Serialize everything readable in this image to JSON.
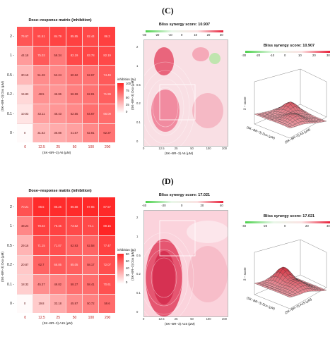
{
  "panels": [
    {
      "id": "C",
      "label": "(C)",
      "matrix_title": "Dose−response matrix (inhibition)",
      "row_labels": [
        "2",
        "1",
        "0.5",
        "0.2",
        "0.1",
        "0"
      ],
      "col_labels": [
        "0",
        "12.5",
        "25",
        "50",
        "100",
        "200"
      ],
      "y_title": "(SK−BR−3) Dox (μM)",
      "x_title": "(SK−BR−3) A6 (μM)",
      "legend_title": "inhibition (%)",
      "legend_ticks": [
        "100",
        "75",
        "50",
        "25",
        "0"
      ],
      "values": [
        [
          "76.67",
          "81.51",
          "84.79",
          "85.85",
          "82.44",
          "86.3"
        ],
        [
          "44.18",
          "75.03",
          "59.34",
          "82.19",
          "83.78",
          "82.19"
        ],
        [
          "30.18",
          "51.28",
          "52.24",
          "60.62",
          "62.67",
          "74.49"
        ],
        [
          "15.83",
          "48.5",
          "46.86",
          "56.59",
          "62.81",
          "71.99"
        ],
        [
          "10.03",
          "42.11",
          "46.43",
          "52.55",
          "64.67",
          "66.09"
        ],
        [
          "0",
          "31.62",
          "36.88",
          "41.67",
          "52.81",
          "62.37"
        ]
      ],
      "synergy_title": "Bliss synergy score: 10.907",
      "synergy_bar_ticks": [
        "-30",
        "-20",
        "-10",
        "0",
        "10",
        "20",
        "30"
      ],
      "contour_x_ticks": [
        "0",
        "12.5",
        "25",
        "50",
        "100",
        "200"
      ],
      "contour_y_ticks": [
        "2",
        "1",
        "0.5",
        "0.2",
        "0.1",
        "0"
      ],
      "contour_x_title": "(SK−BR−3) A6 (μM)",
      "contour_y_title": "(SK−BR−3) Dox (μM)",
      "surface_title": "Bliss synergy score: 10.907",
      "surface_bar_ticks": [
        "-30",
        "-20",
        "-10",
        "0",
        "10",
        "20",
        "30"
      ],
      "surface_z_label": "δ − score",
      "surface_x_title": "(SK−BR−3) A6 (μM)",
      "surface_y_title": "(SK−BR−3) Dox (μM)"
    },
    {
      "id": "D",
      "label": "(D)",
      "matrix_title": "Dose−response matrix (inhibition)",
      "row_labels": [
        "2",
        "1",
        "0.5",
        "0.2",
        "0.1",
        "0"
      ],
      "col_labels": [
        "0",
        "12.5",
        "25",
        "50",
        "100",
        "200"
      ],
      "y_title": "(SK−BR−3) Dox (μM)",
      "x_title": "(SK−BR−3) A15 (μM)",
      "legend_title": "inhibition (%)",
      "legend_ticks": [
        "80",
        "60",
        "40",
        "20",
        "0"
      ],
      "values": [
        [
          "70.21",
          "86.5",
          "86.25",
          "86.58",
          "87.85",
          "87.57"
        ],
        [
          "48.24",
          "78.02",
          "76.45",
          "73.52",
          "74.1",
          "89.15"
        ],
        [
          "29.16",
          "71.15",
          "71.07",
          "62.93",
          "62.58",
          "77.47"
        ],
        [
          "20.87",
          "62.7",
          "66.85",
          "65.05",
          "58.17",
          "72.07"
        ],
        [
          "18.32",
          "45.37",
          "49.82",
          "58.27",
          "58.41",
          "70.61"
        ],
        [
          "0",
          "19.8",
          "33.18",
          "45.97",
          "50.72",
          "59.6"
        ]
      ],
      "synergy_title": "Bliss synergy score: 17.021",
      "synergy_bar_ticks": [
        "-40",
        "-20",
        "0",
        "20",
        "40"
      ],
      "contour_x_ticks": [
        "0",
        "12.5",
        "25",
        "50",
        "100",
        "200"
      ],
      "contour_y_ticks": [
        "2",
        "1",
        "0.5",
        "0.2",
        "0.1",
        "0"
      ],
      "contour_x_title": "(SK−BR−3) A15 (μM)",
      "contour_y_title": "(SK−BR−3) Dox (μM)",
      "surface_title": "Bliss synergy score: 17.021",
      "surface_bar_ticks": [
        "-40",
        "-20",
        "0",
        "20",
        "40"
      ],
      "surface_z_label": "δ − score",
      "surface_x_title": "(SK−BR−3) A15 (μM)",
      "surface_y_title": "(SK−BR−3) Dox (μM)"
    }
  ],
  "chart_data": [
    {
      "type": "heatmap",
      "title": "Dose−response matrix (inhibition)",
      "xlabel": "(SK−BR−3) A6 (μM)",
      "ylabel": "(SK−BR−3) Dox (μM)",
      "x": [
        0,
        12.5,
        25,
        50,
        100,
        200
      ],
      "y": [
        2,
        1,
        0.5,
        0.2,
        0.1,
        0
      ],
      "values": [
        [
          76.67,
          81.51,
          84.79,
          85.85,
          82.44,
          86.3
        ],
        [
          44.18,
          75.03,
          59.34,
          82.19,
          83.78,
          82.19
        ],
        [
          30.18,
          51.28,
          52.24,
          60.62,
          62.67,
          74.49
        ],
        [
          15.83,
          48.5,
          46.86,
          56.59,
          62.81,
          71.99
        ],
        [
          10.03,
          42.11,
          46.43,
          52.55,
          64.67,
          66.09
        ],
        [
          0,
          31.62,
          36.88,
          41.67,
          52.81,
          62.37
        ]
      ],
      "legend_title": "inhibition (%)",
      "colorbar_ticks": [
        0,
        25,
        50,
        75,
        100
      ]
    },
    {
      "type": "heatmap",
      "title": "Dose−response matrix (inhibition)",
      "xlabel": "(SK−BR−3) A15 (μM)",
      "ylabel": "(SK−BR−3) Dox (μM)",
      "x": [
        0,
        12.5,
        25,
        50,
        100,
        200
      ],
      "y": [
        2,
        1,
        0.5,
        0.2,
        0.1,
        0
      ],
      "values": [
        [
          70.21,
          86.5,
          86.25,
          86.58,
          87.85,
          87.57
        ],
        [
          48.24,
          78.02,
          76.45,
          73.52,
          74.1,
          89.15
        ],
        [
          29.16,
          71.15,
          71.07,
          62.93,
          62.58,
          77.47
        ],
        [
          20.87,
          62.7,
          66.85,
          65.05,
          58.17,
          72.07
        ],
        [
          18.32,
          45.37,
          49.82,
          58.27,
          58.41,
          70.61
        ],
        [
          0,
          19.8,
          33.18,
          45.97,
          50.72,
          59.6
        ]
      ],
      "legend_title": "inhibition (%)",
      "colorbar_ticks": [
        0,
        20,
        40,
        60,
        80
      ]
    },
    {
      "type": "heatmap",
      "title": "Bliss synergy score: 10.907",
      "xlabel": "(SK−BR−3) A6 (μM)",
      "ylabel": "(SK−BR−3) Dox (μM)",
      "x": [
        0,
        12.5,
        25,
        50,
        100,
        200
      ],
      "y": [
        0,
        0.1,
        0.2,
        0.5,
        1,
        2
      ],
      "colorbar_range": [
        -30,
        30
      ]
    },
    {
      "type": "heatmap",
      "title": "Bliss synergy score: 17.021",
      "xlabel": "(SK−BR−3) A15 (μM)",
      "ylabel": "(SK−BR−3) Dox (μM)",
      "x": [
        0,
        12.5,
        25,
        50,
        100,
        200
      ],
      "y": [
        0,
        0.1,
        0.2,
        0.5,
        1,
        2
      ],
      "colorbar_range": [
        -40,
        40
      ]
    }
  ]
}
